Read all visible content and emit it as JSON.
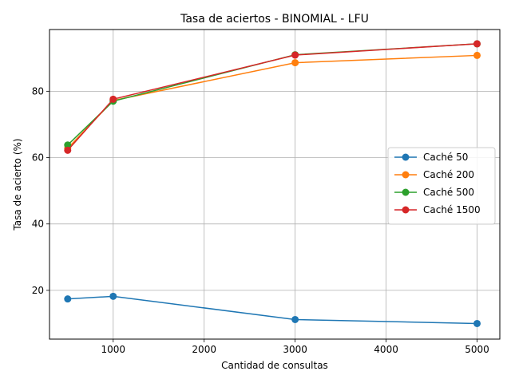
{
  "chart_data": {
    "type": "line",
    "title": "Tasa de aciertos - BINOMIAL - LFU",
    "xlabel": "Cantidad de consultas",
    "ylabel": "Tasa de acierto (%)",
    "xlim": [
      300,
      5250
    ],
    "ylim": [
      5.3,
      98.6
    ],
    "xticks": [
      1000,
      2000,
      3000,
      4000,
      5000
    ],
    "yticks": [
      20,
      40,
      60,
      80
    ],
    "grid": true,
    "legend_position": "center-right",
    "x": [
      500,
      1000,
      3000,
      5000
    ],
    "series": [
      {
        "name": "Caché 50",
        "color": "#1f77b4",
        "values": [
          17.4,
          18.2,
          11.2,
          10.0
        ]
      },
      {
        "name": "Caché 200",
        "color": "#ff7f0e",
        "values": [
          62.8,
          77.2,
          88.6,
          90.8
        ]
      },
      {
        "name": "Caché 500",
        "color": "#2ca02c",
        "values": [
          63.8,
          77.0,
          91.0,
          94.3
        ]
      },
      {
        "name": "Caché 1500",
        "color": "#d62728",
        "values": [
          62.2,
          77.6,
          90.9,
          94.3
        ]
      }
    ]
  }
}
